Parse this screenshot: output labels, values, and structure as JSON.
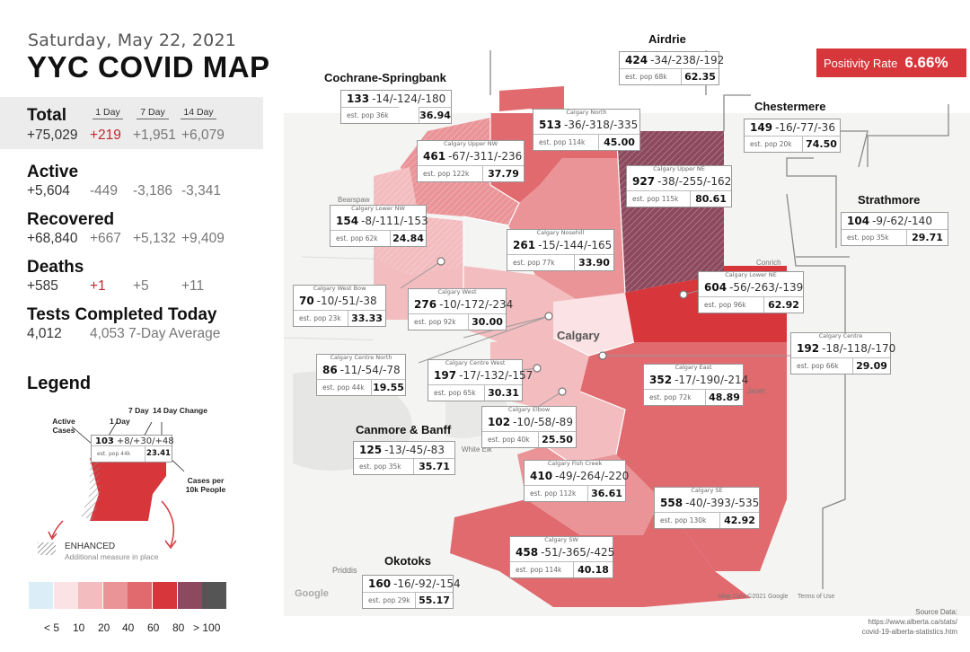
{
  "header": {
    "date": "Saturday, May 22, 2021",
    "title": "YYC COVID MAP"
  },
  "stats": {
    "col_heads": [
      "1 Day",
      "7 Day",
      "14 Day"
    ],
    "total": {
      "label": "Total",
      "value": "+75,029",
      "d1": "+219",
      "d7": "+1,951",
      "d14": "+6,079"
    },
    "active": {
      "label": "Active",
      "value": "+5,604",
      "d1": "-449",
      "d7": "-3,186",
      "d14": "-3,341"
    },
    "recovered": {
      "label": "Recovered",
      "value": "+68,840",
      "d1": "+667",
      "d7": "+5,132",
      "d14": "+9,409"
    },
    "deaths": {
      "label": "Deaths",
      "value": "+585",
      "d1": "+1",
      "d7": "+5",
      "d14": "+11"
    },
    "tests": {
      "label": "Tests Completed Today",
      "value": "4,012",
      "avg": "4,053 7-Day Average"
    }
  },
  "legend": {
    "title": "Legend",
    "col_7day": "7 Day",
    "col_14day": "14 Day Change",
    "col_1day": "1 Day",
    "active_cases": "Active Cases",
    "sample_main": "103",
    "sample_changes": "+8/+30/+48",
    "sample_pop": "est. pop 44k",
    "sample_rate": "23.41",
    "cases_per": "Cases per 10k People",
    "enhanced": "ENHANCED",
    "enhanced_sub": "Additional measure in place",
    "scale_labels": [
      "< 5",
      "10",
      "20",
      "40",
      "60",
      "80",
      "> 100"
    ],
    "scale_colors": [
      "#dbeef7",
      "#fbe3e5",
      "#f3bcbf",
      "#ea9497",
      "#e06a6e",
      "#d7363b",
      "#8d4a5e",
      "#555555"
    ]
  },
  "positivity": {
    "label": "Positivity Rate",
    "value": "6.66%"
  },
  "areas": [
    {
      "id": "airdrie",
      "name": "Airdrie",
      "main": "424",
      "changes": "-34/-238/-192",
      "pop": "est. pop 68k",
      "rate": "62.35"
    },
    {
      "id": "cochrane",
      "name": "Cochrane-Springbank",
      "main": "133",
      "changes": "-14/-124/-180",
      "pop": "est. pop 36k",
      "rate": "36.94"
    },
    {
      "id": "chestermere",
      "name": "Chestermere",
      "main": "149",
      "changes": "-16/-77/-36",
      "pop": "est. pop 20k",
      "rate": "74.50"
    },
    {
      "id": "strathmore",
      "name": "Strathmore",
      "main": "104",
      "changes": "-9/-62/-140",
      "pop": "est. pop 35k",
      "rate": "29.71"
    },
    {
      "id": "canmore",
      "name": "Canmore & Banff",
      "main": "125",
      "changes": "-13/-45/-83",
      "pop": "est. pop 35k",
      "rate": "35.71"
    },
    {
      "id": "okotoks",
      "name": "Okotoks",
      "main": "160",
      "changes": "-16/-92/-154",
      "pop": "est. pop 29k",
      "rate": "55.17"
    }
  ],
  "districts": [
    {
      "id": "north",
      "sub": "Calgary North",
      "main": "513",
      "changes": "-36/-318/-335",
      "pop": "est. pop 114k",
      "rate": "45.00"
    },
    {
      "id": "uppernw",
      "sub": "Calgary Upper NW",
      "main": "461",
      "changes": "-67/-311/-236",
      "pop": "est. pop 122k",
      "rate": "37.79"
    },
    {
      "id": "upperne",
      "sub": "Calgary Upper NE",
      "main": "927",
      "changes": "-38/-255/-162",
      "pop": "est. pop 115k",
      "rate": "80.61"
    },
    {
      "id": "lowernw",
      "sub": "Calgary Lower NW",
      "main": "154",
      "changes": "-8/-111/-153",
      "pop": "est. pop 62k",
      "rate": "24.84"
    },
    {
      "id": "nosehill",
      "sub": "Calgary Nosehill",
      "main": "261",
      "changes": "-15/-144/-165",
      "pop": "est. pop 77k",
      "rate": "33.90"
    },
    {
      "id": "lowerne",
      "sub": "Calgary Lower NE",
      "main": "604",
      "changes": "-56/-263/-139",
      "pop": "est. pop 96k",
      "rate": "62.92"
    },
    {
      "id": "westbow",
      "sub": "Calgary West Bow",
      "main": "70",
      "changes": "-10/-51/-38",
      "pop": "est. pop 23k",
      "rate": "33.33"
    },
    {
      "id": "west",
      "sub": "Calgary West",
      "main": "276",
      "changes": "-10/-172/-234",
      "pop": "est. pop 92k",
      "rate": "30.00"
    },
    {
      "id": "centre",
      "sub": "Calgary Centre",
      "main": "192",
      "changes": "-18/-118/-170",
      "pop": "est. pop 66k",
      "rate": "29.09"
    },
    {
      "id": "centrenorth",
      "sub": "Calgary Centre North",
      "main": "86",
      "changes": "-11/-54/-78",
      "pop": "est. pop 44k",
      "rate": "19.55"
    },
    {
      "id": "centrewest",
      "sub": "Calgary Centre West",
      "main": "197",
      "changes": "-17/-132/-157",
      "pop": "est. pop 65k",
      "rate": "30.31"
    },
    {
      "id": "east",
      "sub": "Calgary East",
      "main": "352",
      "changes": "-17/-190/-214",
      "pop": "est. pop 72k",
      "rate": "48.89"
    },
    {
      "id": "elbow",
      "sub": "Calgary Elbow",
      "main": "102",
      "changes": "-10/-58/-89",
      "pop": "est. pop 40k",
      "rate": "25.50"
    },
    {
      "id": "fishcreek",
      "sub": "Calgary Fish Creek",
      "main": "410",
      "changes": "-49/-264/-220",
      "pop": "est. pop 112k",
      "rate": "36.61"
    },
    {
      "id": "se",
      "sub": "Calgary SE",
      "main": "558",
      "changes": "-40/-393/-535",
      "pop": "est. pop 130k",
      "rate": "42.92"
    },
    {
      "id": "sw",
      "sub": "Calgary SW",
      "main": "458",
      "changes": "-51/-365/-425",
      "pop": "est. pop 114k",
      "rate": "40.18"
    }
  ],
  "map_labels": {
    "calgary": "Calgary",
    "priddis": "Priddis",
    "google": "Google",
    "white_elk": "White Elk",
    "terms": "Terms of Use",
    "map_data": "Map Data ©2021 Google",
    "conrich": "Conrich",
    "janet": "Janet",
    "bearspaw": "Bearspaw"
  },
  "source": {
    "line1": "Source Data:",
    "line2": "https://www.alberta.ca/stats/",
    "line3": "covid-19-alberta-statistics.htm"
  }
}
